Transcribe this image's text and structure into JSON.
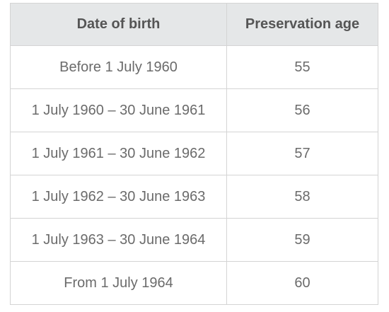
{
  "table": {
    "headers": [
      "Date of birth",
      "Preservation age"
    ],
    "rows": [
      [
        "Before 1  July 1960",
        "55"
      ],
      [
        "1  July 1960 – 30  June 1961",
        "56"
      ],
      [
        "1  July 1961 – 30  June 1962",
        "57"
      ],
      [
        "1  July 1962 – 30  June 1963",
        "58"
      ],
      [
        "1  July 1963 – 30  June 1964",
        "59"
      ],
      [
        "From 1  July 1964",
        "60"
      ]
    ]
  },
  "colors": {
    "header_background": "#e5e7e8",
    "header_text": "#555555",
    "cell_text": "#6b6b6b",
    "border": "#d4d4d4"
  }
}
